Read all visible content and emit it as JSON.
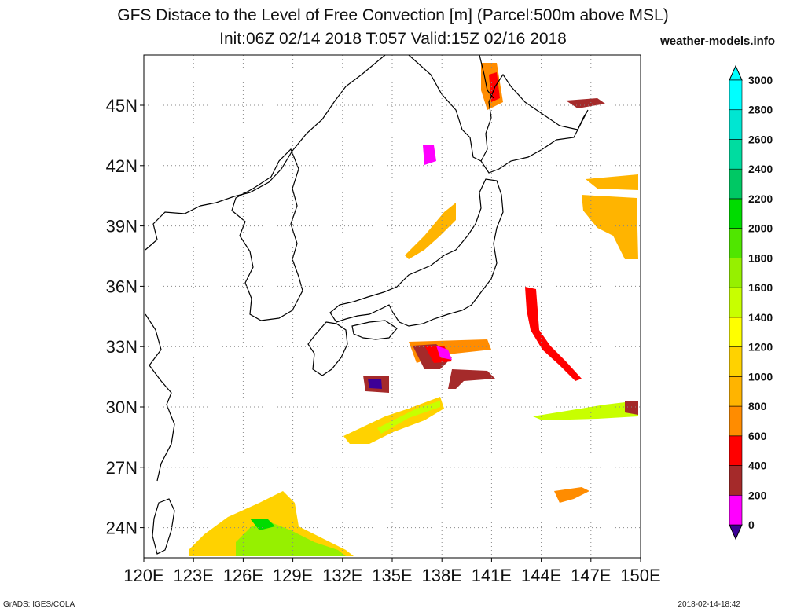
{
  "title_line1": "GFS Distace to the Level of Free Convection [m] (Parcel:500m above MSL)",
  "title_line2": "Init:06Z 02/14 2018 T:057 Valid:15Z 02/16 2018",
  "site": "weather-models.info",
  "footer_left": "GrADS: IGES/COLA",
  "footer_right": "2018-02-14-18:42",
  "map": {
    "lon_range": [
      120,
      150
    ],
    "lat_range": [
      22.5,
      47.5
    ],
    "lon_ticks": [
      "120E",
      "123E",
      "126E",
      "129E",
      "132E",
      "135E",
      "138E",
      "141E",
      "144E",
      "147E",
      "150E"
    ],
    "lat_ticks": [
      "24N",
      "27N",
      "30N",
      "33N",
      "36N",
      "39N",
      "42N",
      "45N"
    ],
    "lat_tick_values": [
      24,
      27,
      30,
      33,
      36,
      39,
      42,
      45
    ],
    "lon_tick_values": [
      120,
      123,
      126,
      129,
      132,
      135,
      138,
      141,
      144,
      147,
      150
    ]
  },
  "colorbar": {
    "labels": [
      "0",
      "200",
      "400",
      "600",
      "800",
      "1000",
      "1200",
      "1400",
      "1600",
      "1800",
      "2000",
      "2200",
      "2400",
      "2600",
      "2800",
      "3000"
    ],
    "colors": [
      "#3c0096",
      "#ff00ff",
      "#a52a2a",
      "#ff0000",
      "#ff8c00",
      "#ffb400",
      "#ffd200",
      "#ffff00",
      "#c8ff00",
      "#96f000",
      "#50e600",
      "#00dc00",
      "#00c864",
      "#00dca0",
      "#00e6d2",
      "#00ffff"
    ],
    "under_color": "#3c0096",
    "over_color": "#00ffff"
  }
}
